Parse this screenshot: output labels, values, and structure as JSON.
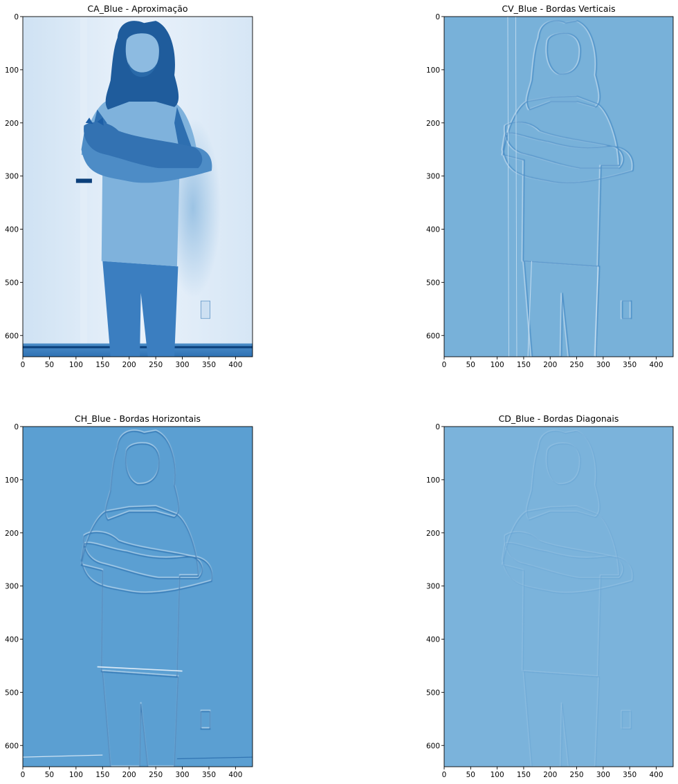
{
  "chart_data": [
    {
      "type": "heatmap",
      "title": "CA_Blue - Aproximação",
      "colormap": "Blues",
      "image_shape": [
        640,
        432
      ],
      "xlim": [
        0,
        432
      ],
      "ylim": [
        640,
        0
      ],
      "xticks": [
        0,
        50,
        100,
        150,
        200,
        250,
        300,
        350,
        400
      ],
      "yticks": [
        0,
        100,
        200,
        300,
        400,
        500,
        600
      ],
      "grid": false,
      "legend": "none",
      "colors": {
        "light": "#eaf2fb",
        "mid": "#6fa7d4",
        "dark": "#1c5ea6",
        "deep": "#0b3f7a"
      },
      "depicts": "photo"
    },
    {
      "type": "heatmap",
      "title": "CV_Blue - Bordas Verticais",
      "colormap": "Blues",
      "image_shape": [
        640,
        432
      ],
      "xlim": [
        0,
        432
      ],
      "ylim": [
        640,
        0
      ],
      "xticks": [
        0,
        50,
        100,
        150,
        200,
        250,
        300,
        350,
        400
      ],
      "yticks": [
        0,
        100,
        200,
        300,
        400,
        500,
        600
      ],
      "grid": false,
      "legend": "none",
      "colors": {
        "base": "#78b1d9",
        "edge_light": "#cfe3f3",
        "edge_dark": "#3f86c2"
      },
      "depicts": "edges"
    },
    {
      "type": "heatmap",
      "title": "CH_Blue - Bordas Horizontais",
      "colormap": "Blues",
      "image_shape": [
        640,
        432
      ],
      "xlim": [
        0,
        432
      ],
      "ylim": [
        640,
        0
      ],
      "xticks": [
        0,
        50,
        100,
        150,
        200,
        250,
        300,
        350,
        400
      ],
      "yticks": [
        0,
        100,
        200,
        300,
        400,
        500,
        600
      ],
      "grid": false,
      "legend": "none",
      "colors": {
        "base": "#5b9fd2",
        "edge_light": "#cfe3f3",
        "edge_dark": "#2c6fae"
      },
      "depicts": "edges"
    },
    {
      "type": "heatmap",
      "title": "CD_Blue - Bordas Diagonais",
      "colormap": "Blues",
      "image_shape": [
        640,
        432
      ],
      "xlim": [
        0,
        432
      ],
      "ylim": [
        640,
        0
      ],
      "xticks": [
        0,
        50,
        100,
        150,
        200,
        250,
        300,
        350,
        400
      ],
      "yticks": [
        0,
        100,
        200,
        300,
        400,
        500,
        600
      ],
      "grid": false,
      "legend": "none",
      "colors": {
        "base": "#7bb3db",
        "edge_light": "#b8d6ed",
        "edge_dark": "#5597cc"
      },
      "depicts": "edges"
    }
  ]
}
